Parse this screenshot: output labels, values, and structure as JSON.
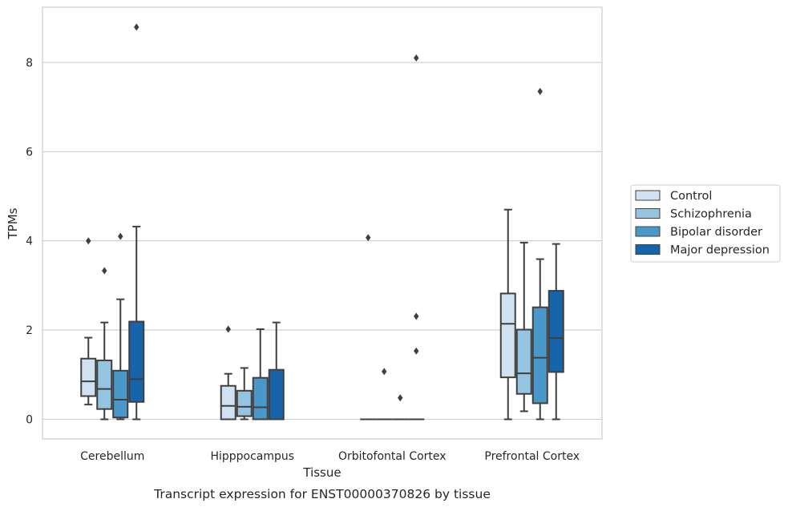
{
  "chart_data": {
    "type": "box",
    "title": "",
    "caption": "Transcript expression for ENST00000370826 by tissue",
    "xlabel": "Tissue",
    "ylabel": "TPMs",
    "ylim": [
      -0.42,
      9.25
    ],
    "yticks": [
      0,
      2,
      4,
      6,
      8
    ],
    "grid": "horizontal",
    "legend_position": "right",
    "categories": [
      "Cerebellum",
      "Hipppocampus",
      "Orbitofontal Cortex",
      "Prefrontal Cortex"
    ],
    "series": [
      {
        "name": "Control",
        "color": "#d0e1f2",
        "boxes": [
          {
            "whislo": 0.33,
            "q1": 0.52,
            "med": 0.85,
            "q3": 1.36,
            "whishi": 1.83,
            "fliers": [
              4.0
            ]
          },
          {
            "whislo": 0.0,
            "q1": 0.0,
            "med": 0.3,
            "q3": 0.75,
            "whishi": 1.02,
            "fliers": [
              2.02
            ]
          },
          {
            "whislo": 0.0,
            "q1": 0.0,
            "med": 0.0,
            "q3": 0.0,
            "whishi": 0.0,
            "fliers": [
              4.07
            ]
          },
          {
            "whislo": 0.0,
            "q1": 0.94,
            "med": 2.14,
            "q3": 2.82,
            "whishi": 4.7,
            "fliers": []
          }
        ]
      },
      {
        "name": "Schizophrenia",
        "color": "#94c4df",
        "boxes": [
          {
            "whislo": 0.0,
            "q1": 0.23,
            "med": 0.68,
            "q3": 1.32,
            "whishi": 2.17,
            "fliers": [
              3.33
            ]
          },
          {
            "whislo": 0.0,
            "q1": 0.07,
            "med": 0.28,
            "q3": 0.64,
            "whishi": 1.15,
            "fliers": []
          },
          {
            "whislo": 0.0,
            "q1": 0.0,
            "med": 0.0,
            "q3": 0.0,
            "whishi": 0.0,
            "fliers": [
              1.07
            ]
          },
          {
            "whislo": 0.18,
            "q1": 0.57,
            "med": 1.03,
            "q3": 2.01,
            "whishi": 3.96,
            "fliers": []
          }
        ]
      },
      {
        "name": "Bipolar disorder",
        "color": "#4a98c9",
        "boxes": [
          {
            "whislo": 0.0,
            "q1": 0.04,
            "med": 0.44,
            "q3": 1.09,
            "whishi": 2.69,
            "fliers": [
              4.1
            ]
          },
          {
            "whislo": 0.0,
            "q1": 0.0,
            "med": 0.27,
            "q3": 0.93,
            "whishi": 2.02,
            "fliers": []
          },
          {
            "whislo": 0.0,
            "q1": 0.0,
            "med": 0.0,
            "q3": 0.0,
            "whishi": 0.0,
            "fliers": [
              0.48
            ]
          },
          {
            "whislo": 0.0,
            "q1": 0.36,
            "med": 1.38,
            "q3": 2.51,
            "whishi": 3.59,
            "fliers": [
              7.35
            ]
          }
        ]
      },
      {
        "name": "Major depression",
        "color": "#1764ab",
        "boxes": [
          {
            "whislo": 0.0,
            "q1": 0.39,
            "med": 0.9,
            "q3": 2.19,
            "whishi": 4.32,
            "fliers": [
              8.79
            ]
          },
          {
            "whislo": 0.0,
            "q1": 0.0,
            "med": 0.0,
            "q3": 1.11,
            "whishi": 2.17,
            "fliers": []
          },
          {
            "whislo": 0.0,
            "q1": 0.0,
            "med": 0.0,
            "q3": 0.0,
            "whishi": 0.0,
            "fliers": [
              2.31,
              1.53,
              8.1
            ]
          },
          {
            "whislo": 0.0,
            "q1": 1.06,
            "med": 1.82,
            "q3": 2.88,
            "whishi": 3.93,
            "fliers": []
          }
        ]
      }
    ]
  }
}
